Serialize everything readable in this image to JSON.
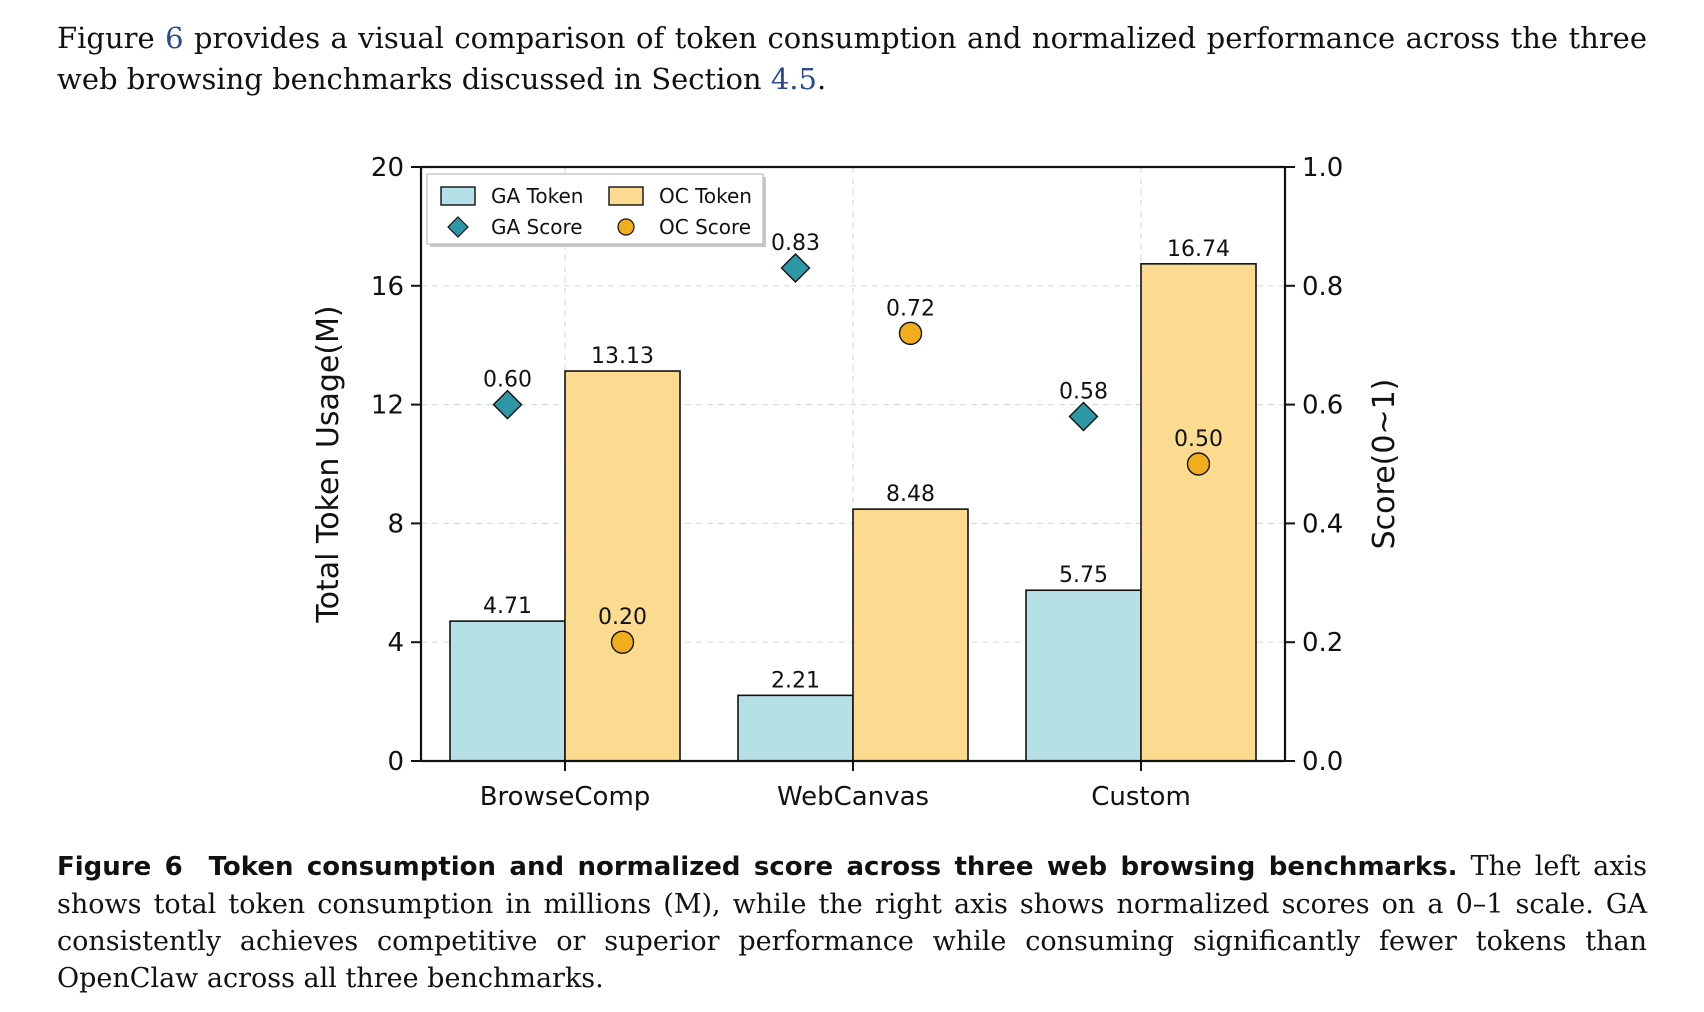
{
  "intro": {
    "part1": "Figure ",
    "fig_ref": "6",
    "part2": " provides a visual comparison of token consumption and normalized performance across the three web browsing benchmarks discussed in Section ",
    "sec_ref": "4.5",
    "part3": "."
  },
  "caption": {
    "label": "Figure 6",
    "title": "Token consumption and normalized score across three web browsing benchmarks.",
    "body": "The left axis shows total token consumption in millions (M), while the right axis shows normalized scores on a 0–1 scale. GA consistently achieves competitive or superior performance while consuming significantly fewer tokens than OpenClaw across all three benchmarks."
  },
  "chart_data": {
    "type": "bar",
    "categories": [
      "BrowseComp",
      "WebCanvas",
      "Custom"
    ],
    "series": [
      {
        "name": "GA Token",
        "kind": "bar",
        "axis": "left",
        "values": [
          4.71,
          2.21,
          5.75
        ],
        "labels": [
          "4.71",
          "2.21",
          "5.75"
        ],
        "color": "#b5e0e8"
      },
      {
        "name": "OC Token",
        "kind": "bar",
        "axis": "left",
        "values": [
          13.13,
          8.48,
          16.74
        ],
        "labels": [
          "13.13",
          "8.48",
          "16.74"
        ],
        "color": "#fadb8f"
      },
      {
        "name": "GA Score",
        "kind": "diamond",
        "axis": "right",
        "values": [
          0.6,
          0.83,
          0.58
        ],
        "labels": [
          "0.60",
          "0.83",
          "0.58"
        ],
        "color": "#2e97a6"
      },
      {
        "name": "OC Score",
        "kind": "circle",
        "axis": "right",
        "values": [
          0.2,
          0.72,
          0.5
        ],
        "labels": [
          "0.20",
          "0.72",
          "0.50"
        ],
        "color": "#f1ad1c"
      }
    ],
    "ylabel": "Total Token Usage(M)",
    "ylim": [
      0,
      20
    ],
    "yticks": [
      0,
      4,
      8,
      12,
      16,
      20
    ],
    "ytick_labels": [
      "0",
      "4",
      "8",
      "12",
      "16",
      "20"
    ],
    "y2label": "Score(0~1)",
    "y2lim": [
      0,
      1
    ],
    "y2ticks": [
      0,
      0.2,
      0.4,
      0.6,
      0.8,
      1.0
    ],
    "y2tick_labels": [
      "0.0",
      "0.2",
      "0.4",
      "0.6",
      "0.8",
      "1.0"
    ],
    "grid": true,
    "legend": "top-left"
  }
}
